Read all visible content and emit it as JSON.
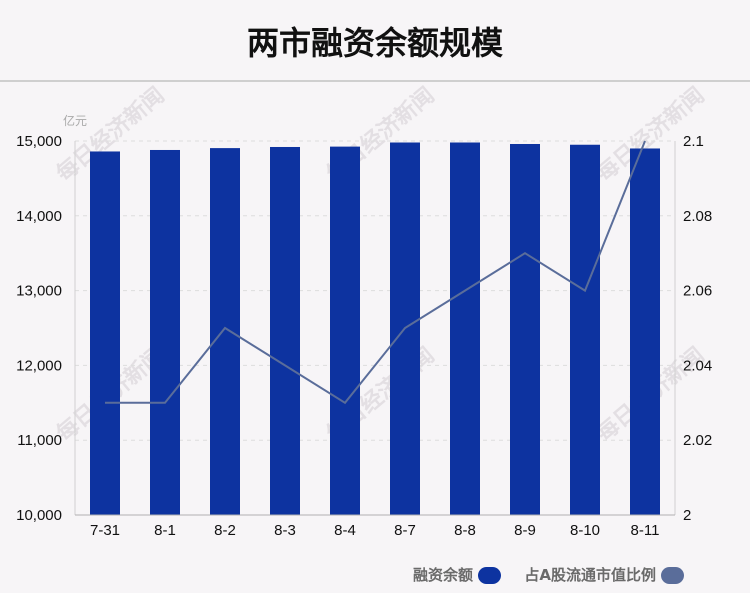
{
  "title": "两市融资余额规模",
  "watermark": "每日经济新闻",
  "chart_data": {
    "type": "bar",
    "unit_left": "亿元",
    "categories": [
      "7-31",
      "8-1",
      "8-2",
      "8-3",
      "8-4",
      "8-7",
      "8-8",
      "8-9",
      "8-10",
      "8-11"
    ],
    "series": [
      {
        "name": "融资余额",
        "type": "bar",
        "axis": "left",
        "color": "#0d33a0",
        "values": [
          14860,
          14880,
          14905,
          14920,
          14925,
          14980,
          14980,
          14960,
          14950,
          14900
        ]
      },
      {
        "name": "占A股流通市值比例",
        "type": "line",
        "axis": "right",
        "color": "#5a6d9a",
        "values": [
          2.03,
          2.03,
          2.05,
          2.04,
          2.03,
          2.05,
          2.06,
          2.07,
          2.06,
          2.1
        ]
      }
    ],
    "y_left": {
      "min": 10000,
      "max": 15000,
      "ticks": [
        "10,000",
        "11,000",
        "12,000",
        "13,000",
        "14,000",
        "15,000"
      ]
    },
    "y_right": {
      "min": 2.0,
      "max": 2.1,
      "ticks": [
        "2",
        "2.02",
        "2.04",
        "2.06",
        "2.08",
        "2.1"
      ]
    },
    "grid": true,
    "legend_position": "bottom-right"
  }
}
